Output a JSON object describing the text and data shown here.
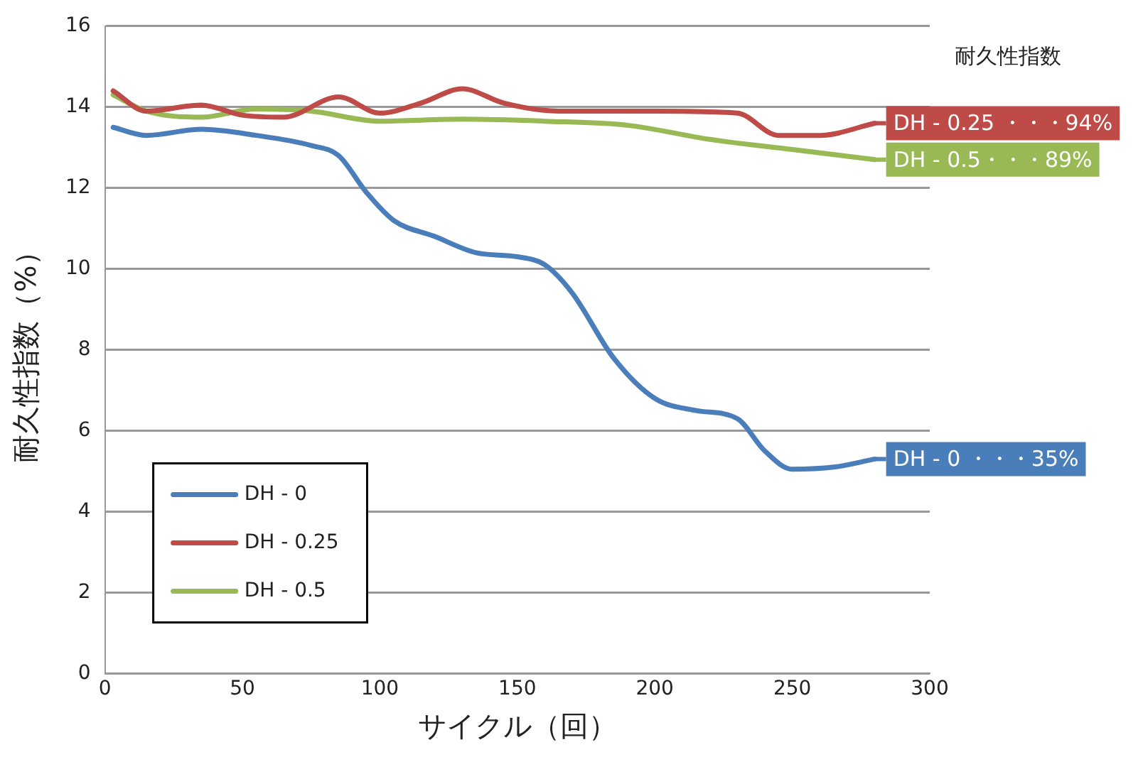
{
  "chart_data": {
    "type": "line",
    "xlabel": "サイクル（回）",
    "ylabel": "耐久性指数（%）",
    "xlim": [
      0,
      300
    ],
    "xticks": [
      0,
      50,
      100,
      150,
      200,
      250,
      300
    ],
    "ylim": [
      0,
      16
    ],
    "yticks": [
      0,
      2,
      4,
      6,
      8,
      10,
      12,
      14,
      16
    ],
    "grid": "y",
    "legend": "bottom left",
    "marker": "none",
    "line_style": "solid",
    "series": [
      {
        "name": "DH - 0",
        "color": "#4a7ebb",
        "x": [
          3,
          15,
          35,
          55,
          75,
          85,
          95,
          105,
          120,
          135,
          150,
          160,
          170,
          185,
          200,
          215,
          230,
          240,
          250,
          265,
          280
        ],
        "values": [
          13.5,
          13.3,
          13.45,
          13.3,
          13.05,
          12.8,
          11.9,
          11.2,
          10.8,
          10.4,
          10.3,
          10.1,
          9.4,
          7.8,
          6.8,
          6.5,
          6.3,
          5.5,
          5.05,
          5.1,
          5.3
        ]
      },
      {
        "name": "DH - 0.25",
        "color": "#be4b48",
        "x": [
          3,
          15,
          35,
          50,
          65,
          85,
          100,
          115,
          130,
          145,
          165,
          200,
          230,
          245,
          260,
          280
        ],
        "values": [
          14.4,
          13.9,
          14.05,
          13.8,
          13.75,
          14.25,
          13.85,
          14.1,
          14.45,
          14.1,
          13.9,
          13.9,
          13.85,
          13.3,
          13.3,
          13.6
        ]
      },
      {
        "name": "DH - 0.5",
        "color": "#98b954",
        "x": [
          3,
          15,
          35,
          55,
          75,
          100,
          130,
          160,
          190,
          220,
          250,
          280
        ],
        "values": [
          14.3,
          13.9,
          13.75,
          13.95,
          13.9,
          13.65,
          13.7,
          13.65,
          13.55,
          13.2,
          12.95,
          12.7
        ]
      }
    ],
    "annotations": [
      "耐久性指数",
      "DH - 0 ・・・35%",
      "DH - 0.25 ・・・94%",
      "DH - 0.5・・・89%"
    ]
  }
}
